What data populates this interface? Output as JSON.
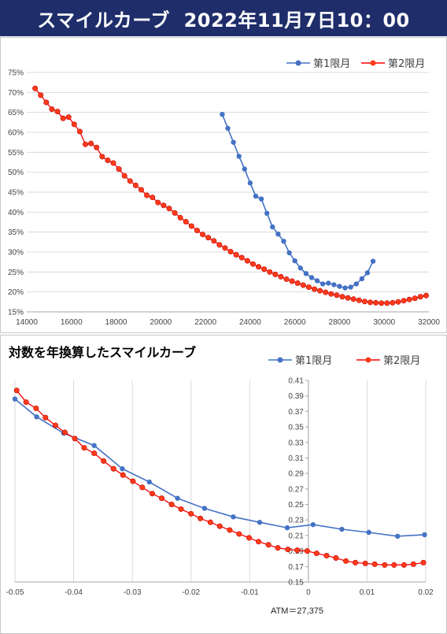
{
  "header": {
    "title": "スマイルカーブ  2022年11月7日10：00"
  },
  "colors": {
    "banner": "#1f2d6b",
    "series1": "#4472c4",
    "series2": "#ff0000",
    "series2_marker": "#ff3b1a"
  },
  "chart_data": [
    {
      "type": "line",
      "title": "",
      "xlabel": "",
      "ylabel": "",
      "xlim": [
        14000,
        32000
      ],
      "ylim": [
        15,
        75
      ],
      "x_ticks": [
        "14000",
        "16000",
        "18000",
        "20000",
        "22000",
        "24000",
        "26000",
        "28000",
        "30000",
        "32000"
      ],
      "y_ticks": [
        "15%",
        "20%",
        "25%",
        "30%",
        "35%",
        "40%",
        "45%",
        "50%",
        "55%",
        "60%",
        "65%",
        "70%",
        "75%"
      ],
      "grid": "horizontal",
      "legend": "top-right",
      "series": [
        {
          "name": "第1限月",
          "x": [
            22750,
            23000,
            23250,
            23500,
            23750,
            24000,
            24250,
            24500,
            24750,
            25000,
            25250,
            25500,
            25750,
            26000,
            26250,
            26500,
            26750,
            27000,
            27250,
            27500,
            27750,
            28000,
            28250,
            28500,
            28750,
            29000,
            29250,
            29500
          ],
          "y": [
            64.5,
            61,
            57.5,
            54,
            50.8,
            47.3,
            44,
            43.3,
            39.7,
            36.3,
            34.5,
            32.7,
            29.8,
            27.8,
            26,
            24.6,
            23.6,
            22.8,
            22,
            22.2,
            21.8,
            21.4,
            21,
            21.2,
            22,
            23.3,
            24.8,
            27.7
          ]
        },
        {
          "name": "第2限月",
          "x": [
            14375,
            14625,
            14875,
            15125,
            15375,
            15625,
            15875,
            16125,
            16375,
            16625,
            16875,
            17125,
            17375,
            17625,
            17875,
            18125,
            18375,
            18625,
            18875,
            19125,
            19375,
            19625,
            19875,
            20125,
            20375,
            20625,
            20875,
            21125,
            21375,
            21625,
            21875,
            22125,
            22375,
            22625,
            22875,
            23125,
            23375,
            23625,
            23875,
            24125,
            24375,
            24625,
            24875,
            25125,
            25375,
            25625,
            25875,
            26125,
            26375,
            26625,
            26875,
            27125,
            27375,
            27625,
            27875,
            28125,
            28375,
            28625,
            28875,
            29125,
            29375,
            29625,
            29875,
            30125,
            30375,
            30625,
            30875,
            31125,
            31375,
            31625,
            31875
          ],
          "y": [
            71,
            69.3,
            67.5,
            65.8,
            65.2,
            63.5,
            63.8,
            62,
            60.2,
            57,
            57.2,
            56.2,
            53.9,
            53,
            52.3,
            50.8,
            49.1,
            47.8,
            46.7,
            45.6,
            44.2,
            43.7,
            42.4,
            41.7,
            40.9,
            39.8,
            38.6,
            37.6,
            36.5,
            35.4,
            34.4,
            33.6,
            32.8,
            31.8,
            31,
            30.1,
            29.3,
            28.6,
            27.8,
            27,
            26.3,
            25.7,
            25,
            24.4,
            23.8,
            23.2,
            22.7,
            22.2,
            21.7,
            21.2,
            20.7,
            20.3,
            19.9,
            19.5,
            19.2,
            18.8,
            18.5,
            18.2,
            17.9,
            17.6,
            17.4,
            17.3,
            17.2,
            17.2,
            17.3,
            17.5,
            17.8,
            18.1,
            18.4,
            18.8,
            19.1
          ]
        }
      ]
    },
    {
      "type": "line",
      "title": "対数を年換算したスマイルカーブ",
      "xlabel": "",
      "ylabel": "",
      "xlim": [
        -0.05,
        0.02
      ],
      "ylim": [
        0.15,
        0.41
      ],
      "x_ticks": [
        "-0.05",
        "-0.04",
        "-0.03",
        "-0.02",
        "-0.01",
        "0",
        "0.01",
        "0.02"
      ],
      "y_ticks": [
        "0.15",
        "0.17",
        "0.19",
        "0.21",
        "0.23",
        "0.25",
        "0.27",
        "0.29",
        "0.31",
        "0.33",
        "0.35",
        "0.37",
        "0.39",
        "0.41"
      ],
      "grid": "vertical",
      "legend": "top-right",
      "annotation": "ATM＝27,375",
      "series": [
        {
          "name": "第1限月",
          "x": [
            -0.05,
            -0.0463,
            -0.0417,
            -0.0365,
            -0.0317,
            -0.0271,
            -0.0223,
            -0.0177,
            -0.0128,
            -0.0083,
            -0.0036,
            0.0008,
            0.0057,
            0.0103,
            0.0152,
            0.0198
          ],
          "y": [
            0.386,
            0.363,
            0.342,
            0.326,
            0.296,
            0.279,
            0.258,
            0.245,
            0.234,
            0.227,
            0.22,
            0.224,
            0.218,
            0.214,
            0.209,
            0.211
          ]
        },
        {
          "name": "第2限月",
          "x": [
            -0.0497,
            -0.0481,
            -0.0464,
            -0.0448,
            -0.0431,
            -0.0415,
            -0.0398,
            -0.0382,
            -0.0365,
            -0.0349,
            -0.0332,
            -0.0316,
            -0.0299,
            -0.0283,
            -0.0266,
            -0.025,
            -0.0233,
            -0.0217,
            -0.02,
            -0.0184,
            -0.0167,
            -0.0151,
            -0.0134,
            -0.0118,
            -0.0101,
            -0.0085,
            -0.0068,
            -0.0052,
            -0.0035,
            -0.0019,
            -0.0002,
            0.0014,
            0.0031,
            0.0047,
            0.0064,
            0.008,
            0.0097,
            0.0113,
            0.013,
            0.0146,
            0.0163,
            0.0179,
            0.0196
          ],
          "y": [
            0.397,
            0.382,
            0.374,
            0.362,
            0.352,
            0.343,
            0.335,
            0.323,
            0.316,
            0.306,
            0.296,
            0.288,
            0.28,
            0.272,
            0.264,
            0.258,
            0.25,
            0.244,
            0.238,
            0.232,
            0.227,
            0.222,
            0.217,
            0.212,
            0.207,
            0.202,
            0.198,
            0.194,
            0.192,
            0.191,
            0.19,
            0.187,
            0.184,
            0.181,
            0.177,
            0.175,
            0.174,
            0.173,
            0.172,
            0.172,
            0.172,
            0.173,
            0.175
          ]
        }
      ]
    }
  ]
}
